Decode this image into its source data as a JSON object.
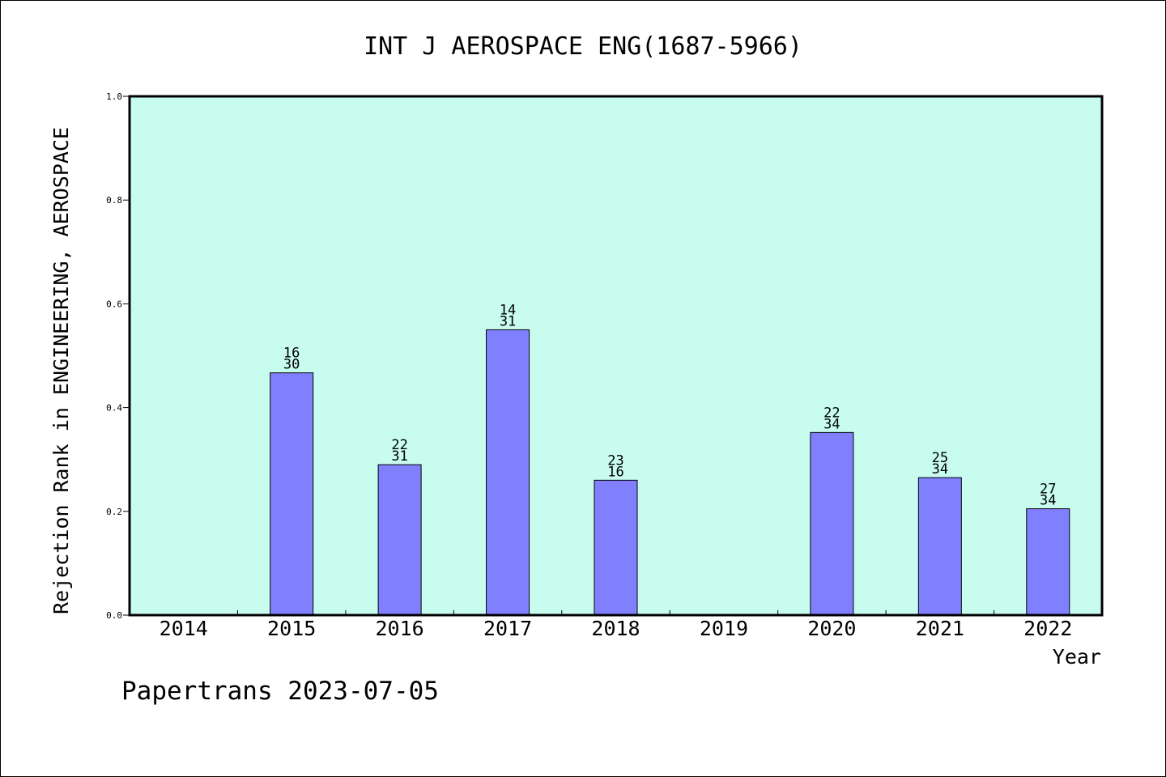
{
  "chart_data": {
    "type": "bar",
    "title": "INT J AEROSPACE ENG(1687-5966)",
    "xlabel": "Year",
    "ylabel": "Rejection Rank in ENGINEERING, AEROSPACE",
    "ylim": [
      0,
      1.0
    ],
    "yticks": [
      "0.0",
      "0.2",
      "0.4",
      "0.6",
      "0.8",
      "1.0"
    ],
    "categories": [
      "2014",
      "2015",
      "2016",
      "2017",
      "2018",
      "2019",
      "2020",
      "2021",
      "2022"
    ],
    "values": [
      null,
      0.467,
      0.29,
      0.55,
      0.26,
      null,
      0.352,
      0.265,
      0.205
    ],
    "labels_top": [
      "",
      "16",
      "22",
      "14",
      "23",
      "",
      "22",
      "25",
      "27"
    ],
    "labels_bottom": [
      "",
      "30",
      "31",
      "31",
      "16",
      "",
      "34",
      "34",
      "34"
    ],
    "grid": false,
    "colors": {
      "plot_bg": "#c8fcee",
      "bar": "#8080ff",
      "bar_edge": "#000000"
    }
  },
  "footer": "Papertrans 2023-07-05"
}
